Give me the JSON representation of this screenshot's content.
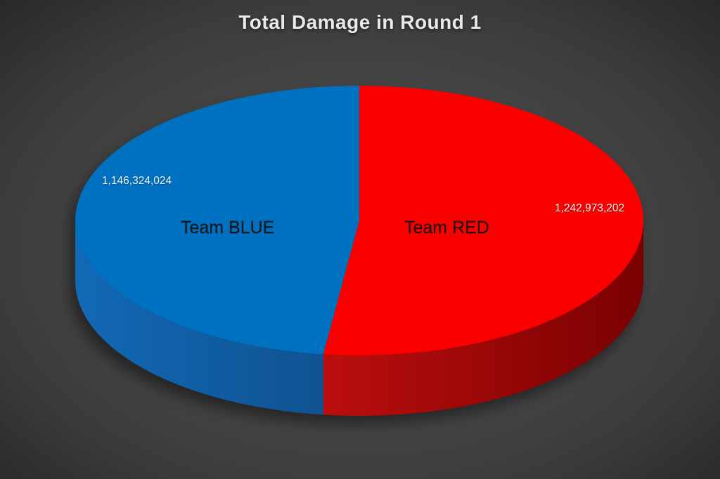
{
  "title": "Total Damage in Round 1",
  "chart_data": {
    "type": "pie",
    "style": "3d",
    "title": "Total Damage in Round 1",
    "direction": "clockwise",
    "start_angle": "12-o-clock",
    "legend": "none",
    "labels_shown": [
      "category-name",
      "value"
    ],
    "total": 2389297226,
    "slices": [
      {
        "label": "Team RED",
        "value": 1242973202,
        "value_label": "1,242,973,202",
        "percent": 52.02,
        "top_color": "#fc0000",
        "side_color_left": "#bb0e0e",
        "side_color_right": "#7a0101"
      },
      {
        "label": "Team BLUE",
        "value": 1146324024,
        "value_label": "1,146,324,024",
        "percent": 47.98,
        "top_color": "#0070c1",
        "side_color_left": "#1269b6",
        "side_color_right": "#0f5291"
      }
    ]
  },
  "colors": {
    "background_center": "#515151",
    "background_edge": "#242424",
    "title_text": "#e9e9e9",
    "value_label_text": "#f5f5f5",
    "category_label_text": "#141414",
    "shadow": "#000000"
  }
}
